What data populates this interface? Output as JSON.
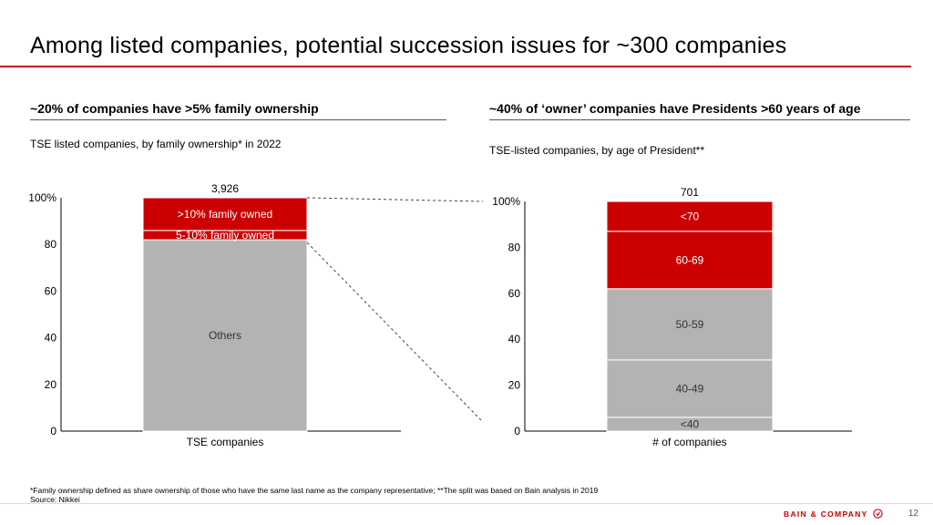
{
  "title": "Among listed companies, potential succession issues for ~300 companies",
  "left": {
    "heading": "~20% of companies have >5% family ownership",
    "subtitle": "TSE listed companies, by family ownership* in 2022"
  },
  "right": {
    "heading": "~40% of ‘owner’ companies have Presidents >60 years of age",
    "subtitle": "TSE-listed companies, by age of President**"
  },
  "footnote": "*Family ownership defined as share ownership of those who have the same last name as the company representative; **The split was based on Bain analysis in 2019",
  "source": "Source: Nikkei",
  "logo": "BAIN & COMPANY",
  "page_number": "12",
  "colors": {
    "red": "#cc0000",
    "gray": "#b3b3b3",
    "axis": "#000000"
  },
  "chart_data": [
    {
      "type": "bar",
      "stacked": true,
      "categories": [
        "TSE companies"
      ],
      "total_label": "3,926",
      "ylim": [
        0,
        100
      ],
      "yticks": [
        "0",
        "20",
        "40",
        "60",
        "80",
        "100%"
      ],
      "series": [
        {
          "name": "Others",
          "values": [
            82
          ],
          "color": "#b3b3b3"
        },
        {
          "name": "5-10% family owned",
          "values": [
            4
          ],
          "color": "#cc0000"
        },
        {
          "name": ">10% family owned",
          "values": [
            14
          ],
          "color": "#cc0000"
        }
      ]
    },
    {
      "type": "bar",
      "stacked": true,
      "categories": [
        "# of companies"
      ],
      "total_label": "701",
      "ylim": [
        0,
        100
      ],
      "yticks": [
        "0",
        "20",
        "40",
        "60",
        "80",
        "100%"
      ],
      "series": [
        {
          "name": "<40",
          "values": [
            6
          ],
          "color": "#b3b3b3"
        },
        {
          "name": "40-49",
          "values": [
            25
          ],
          "color": "#b3b3b3"
        },
        {
          "name": "50-59",
          "values": [
            31
          ],
          "color": "#b3b3b3"
        },
        {
          "name": "60-69",
          "values": [
            25
          ],
          "color": "#cc0000"
        },
        {
          "name": "<70",
          "values": [
            13
          ],
          "color": "#cc0000"
        }
      ]
    }
  ]
}
